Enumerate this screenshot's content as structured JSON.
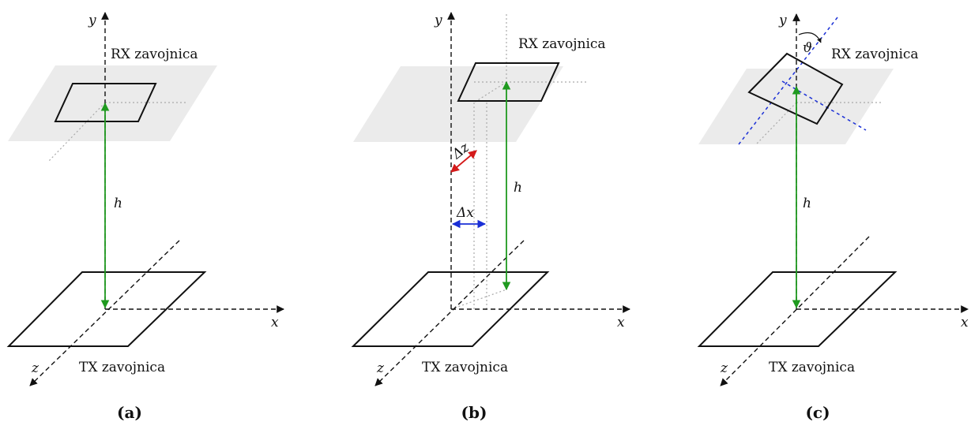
{
  "colors": {
    "axis": "#111111",
    "plane": "#ebebeb",
    "guide": "#aaaaaa",
    "height_arrow": "#1f9a1f",
    "offset_arrow": "#1a2fd6",
    "tilt_axes": "#1a2fd6",
    "lateral_arrow": "#d41a1a"
  },
  "panels": [
    {
      "caption": "(a)",
      "rx_label": "RX zavojnica",
      "tx_label": "TX zavojnica",
      "axis_x": "x",
      "axis_y": "y",
      "axis_z": "z",
      "height_label": "h"
    },
    {
      "caption": "(b)",
      "rx_label": "RX zavojnica",
      "tx_label": "TX zavojnica",
      "axis_x": "x",
      "axis_y": "y",
      "axis_z": "z",
      "height_label": "h",
      "offset_label": "Δx",
      "lateral_label": "Δz"
    },
    {
      "caption": "(c)",
      "rx_label": "RX zavojnica",
      "tx_label": "TX zavojnica",
      "axis_x": "x",
      "axis_y": "y",
      "axis_z": "z",
      "height_label": "h",
      "angle_label": "ϑ"
    }
  ]
}
